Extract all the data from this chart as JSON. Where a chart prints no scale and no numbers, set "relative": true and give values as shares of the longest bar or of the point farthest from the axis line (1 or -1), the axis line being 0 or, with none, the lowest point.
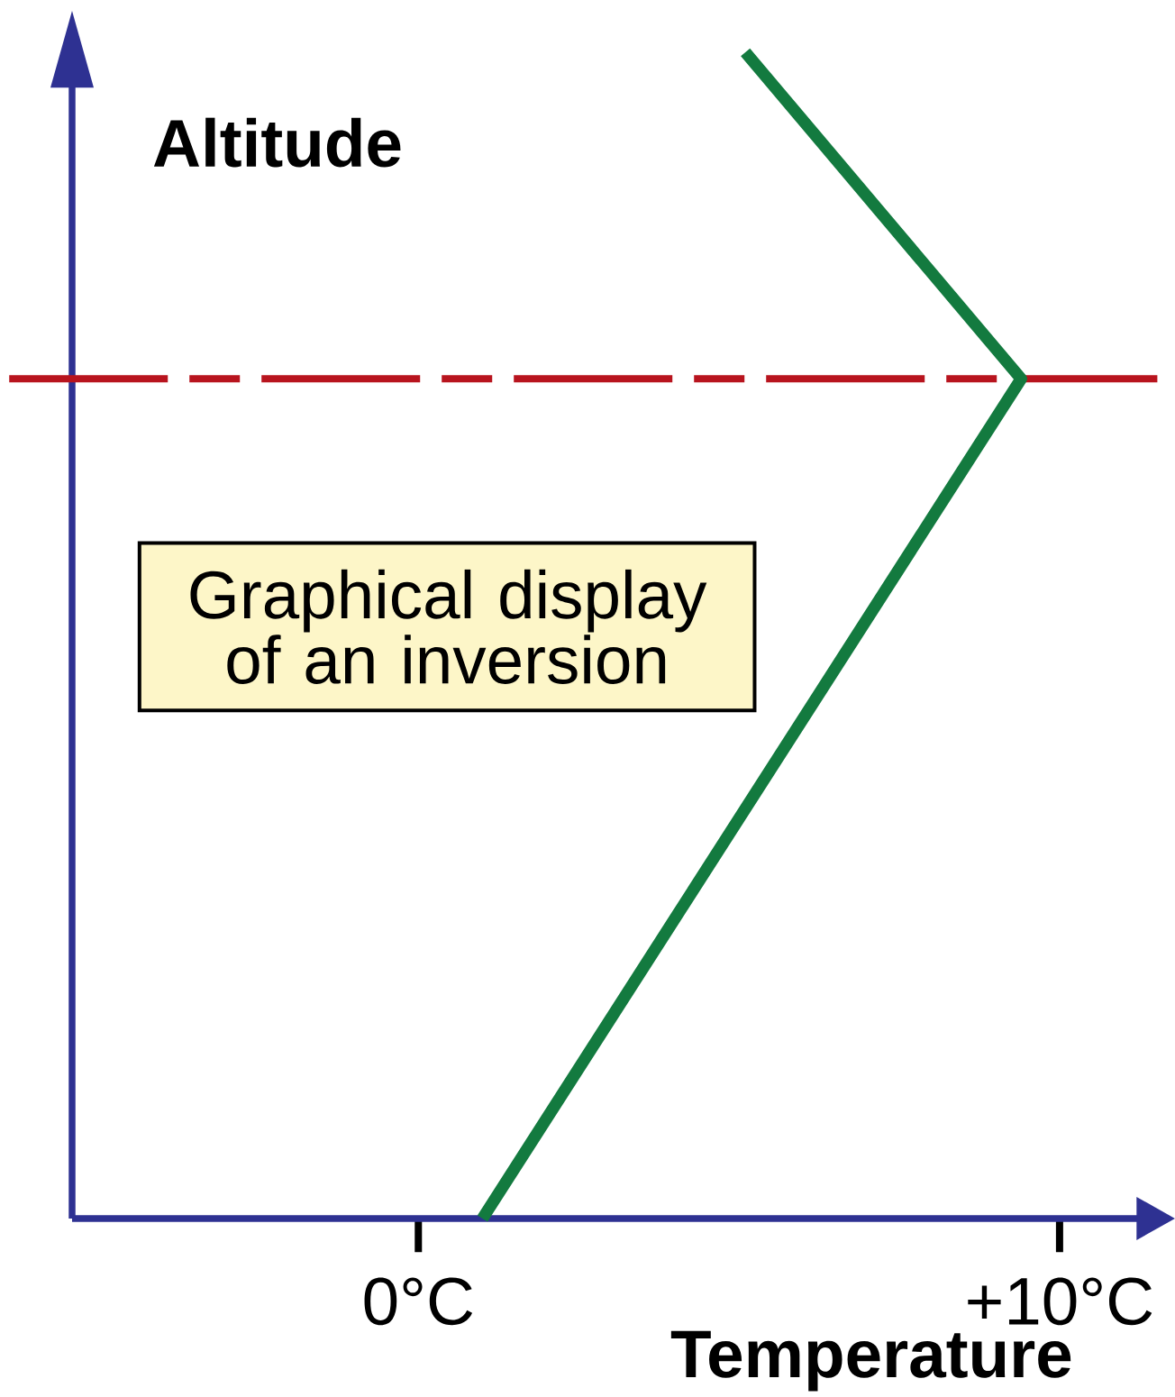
{
  "chart_data": {
    "type": "line",
    "relative": true,
    "xlabel": "Temperature",
    "ylabel": "Altitude",
    "x": [
      1.0,
      9.4,
      5.1
    ],
    "series": [
      {
        "color": "#137a3f",
        "values": [
          0,
          0.72,
          1
        ]
      }
    ],
    "xlim": [
      -5.4,
      11.8
    ],
    "xticks": [
      {
        "value": 0,
        "label": "0°C"
      },
      {
        "value": 10,
        "label": "+10°C"
      }
    ],
    "ref_lines": [
      {
        "axis": "y",
        "value": 0.72,
        "color": "#b8141e",
        "line_style": "dashed"
      }
    ],
    "annotations": [
      "Graphical display of an inversion"
    ],
    "marker": "none",
    "line_style": "solid"
  }
}
